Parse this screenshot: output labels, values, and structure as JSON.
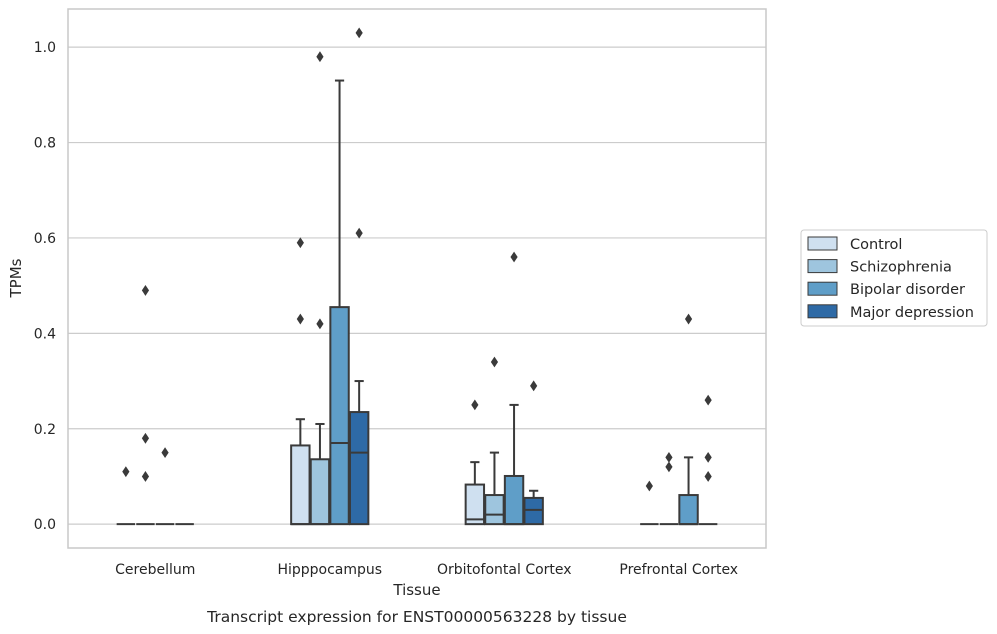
{
  "chart_data": {
    "type": "boxplot",
    "xlabel": "Tissue",
    "ylabel": "TPMs",
    "caption": "Transcript expression for ENST00000563228 by tissue",
    "ylim": [
      -0.05,
      1.08
    ],
    "yticks": [
      "0.0",
      "0.2",
      "0.4",
      "0.6",
      "0.8",
      "1.0"
    ],
    "ytick_values": [
      0.0,
      0.2,
      0.4,
      0.6,
      0.8,
      1.0
    ],
    "grid": true,
    "legend_position": "right",
    "categories": [
      "Cerebellum",
      "Hipppocampus",
      "Orbitofontal Cortex",
      "Prefrontal Cortex"
    ],
    "series": [
      {
        "name": "Control",
        "color": "#cfe0f0",
        "boxes": [
          {
            "q1": 0.0,
            "median": 0.0,
            "q3": 0.0,
            "whisker_low": 0.0,
            "whisker_high": 0.0,
            "outliers": [
              0.11
            ]
          },
          {
            "q1": 0.0,
            "median": 0.0,
            "q3": 0.165,
            "whisker_low": 0.0,
            "whisker_high": 0.22,
            "outliers": [
              0.43,
              0.59
            ]
          },
          {
            "q1": 0.0,
            "median": 0.01,
            "q3": 0.083,
            "whisker_low": 0.0,
            "whisker_high": 0.13,
            "outliers": [
              0.25
            ]
          },
          {
            "q1": 0.0,
            "median": 0.0,
            "q3": 0.0,
            "whisker_low": 0.0,
            "whisker_high": 0.0,
            "outliers": [
              0.08
            ]
          }
        ]
      },
      {
        "name": "Schizophrenia",
        "color": "#9ec5de",
        "boxes": [
          {
            "q1": 0.0,
            "median": 0.0,
            "q3": 0.0,
            "whisker_low": 0.0,
            "whisker_high": 0.0,
            "outliers": [
              0.1,
              0.18,
              0.49
            ]
          },
          {
            "q1": 0.0,
            "median": 0.0,
            "q3": 0.136,
            "whisker_low": 0.0,
            "whisker_high": 0.21,
            "outliers": [
              0.42,
              0.98
            ]
          },
          {
            "q1": 0.0,
            "median": 0.02,
            "q3": 0.061,
            "whisker_low": 0.0,
            "whisker_high": 0.15,
            "outliers": [
              0.34
            ]
          },
          {
            "q1": 0.0,
            "median": 0.0,
            "q3": 0.0,
            "whisker_low": 0.0,
            "whisker_high": 0.0,
            "outliers": [
              0.12,
              0.14
            ]
          }
        ]
      },
      {
        "name": "Bipolar disorder",
        "color": "#5f9ec8",
        "boxes": [
          {
            "q1": 0.0,
            "median": 0.0,
            "q3": 0.0,
            "whisker_low": 0.0,
            "whisker_high": 0.0,
            "outliers": [
              0.15
            ]
          },
          {
            "q1": 0.0,
            "median": 0.17,
            "q3": 0.455,
            "whisker_low": 0.0,
            "whisker_high": 0.93,
            "outliers": []
          },
          {
            "q1": 0.0,
            "median": 0.0,
            "q3": 0.101,
            "whisker_low": 0.0,
            "whisker_high": 0.25,
            "outliers": [
              0.56
            ]
          },
          {
            "q1": 0.0,
            "median": 0.0,
            "q3": 0.061,
            "whisker_low": 0.0,
            "whisker_high": 0.14,
            "outliers": [
              0.43
            ]
          }
        ]
      },
      {
        "name": "Major depression",
        "color": "#2e6aa6",
        "boxes": [
          {
            "q1": 0.0,
            "median": 0.0,
            "q3": 0.0,
            "whisker_low": 0.0,
            "whisker_high": 0.0,
            "outliers": []
          },
          {
            "q1": 0.0,
            "median": 0.15,
            "q3": 0.235,
            "whisker_low": 0.0,
            "whisker_high": 0.3,
            "outliers": [
              0.61,
              1.03
            ]
          },
          {
            "q1": 0.0,
            "median": 0.03,
            "q3": 0.055,
            "whisker_low": 0.0,
            "whisker_high": 0.07,
            "outliers": [
              0.29
            ]
          },
          {
            "q1": 0.0,
            "median": 0.0,
            "q3": 0.0,
            "whisker_low": 0.0,
            "whisker_high": 0.0,
            "outliers": [
              0.1,
              0.14,
              0.26
            ]
          }
        ]
      }
    ],
    "line_color": "#3a3a3a",
    "grid_color": "#cccccc",
    "frame_color": "#c8c8c8"
  }
}
